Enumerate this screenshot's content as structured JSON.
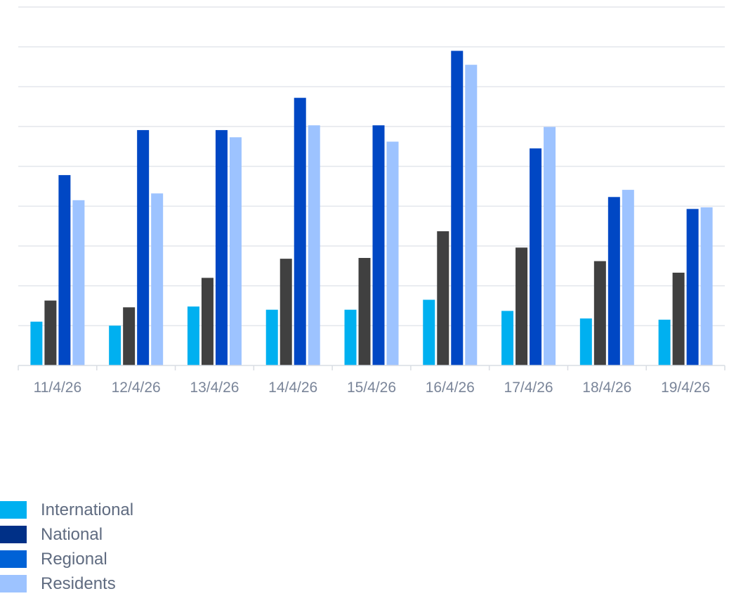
{
  "chart_data": {
    "type": "bar",
    "categories": [
      "11/4/26",
      "12/4/26",
      "13/4/26",
      "14/4/26",
      "15/4/26",
      "16/4/26",
      "17/4/26",
      "18/4/26",
      "19/4/26"
    ],
    "ylim": [
      0,
      9
    ],
    "grid": true,
    "legend_position": "bottom-left",
    "series": [
      {
        "name": "International",
        "color": "#00b0f0",
        "values": [
          1.1,
          1.0,
          1.48,
          1.4,
          1.4,
          1.65,
          1.37,
          1.18,
          1.15
        ]
      },
      {
        "name": "National",
        "color": "#404040",
        "values": [
          1.63,
          1.46,
          2.2,
          2.68,
          2.7,
          3.37,
          2.96,
          2.62,
          2.33
        ]
      },
      {
        "name": "Regional",
        "color": "#0047c4",
        "values": [
          4.78,
          5.91,
          5.91,
          6.72,
          6.03,
          7.9,
          5.45,
          4.23,
          3.93
        ]
      },
      {
        "name": "Residents",
        "color": "#9dc3ff",
        "values": [
          4.15,
          4.32,
          5.73,
          6.03,
          5.62,
          7.55,
          5.99,
          4.41,
          3.97
        ]
      }
    ]
  },
  "legend": [
    {
      "label": "International",
      "color": "#00b0f0"
    },
    {
      "label": "National",
      "color": "#003087"
    },
    {
      "label": "Regional",
      "color": "#0062d6"
    },
    {
      "label": "Residents",
      "color": "#9dc3ff"
    }
  ]
}
